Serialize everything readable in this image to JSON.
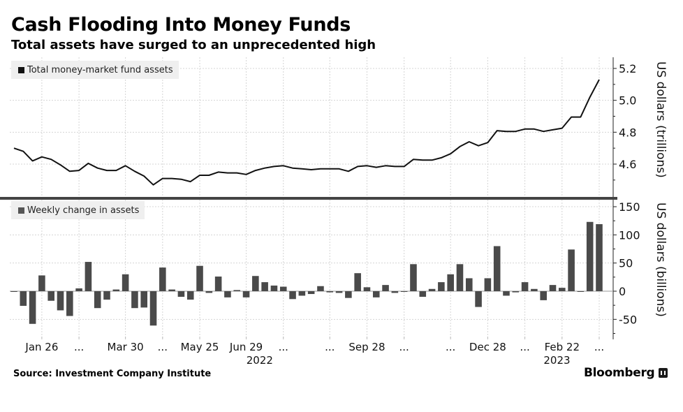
{
  "header": {
    "title": "Cash Flooding Into Money Funds",
    "subtitle": "Total assets have surged to an unprecedented high"
  },
  "footer": {
    "source": "Source: Investment Company Institute",
    "brand": "Bloomberg"
  },
  "colors": {
    "line": "#111111",
    "bar": "#4a4a4a",
    "grid": "#d4d4d4",
    "divider": "#444444",
    "legend_bg": "#efefef"
  },
  "chart_data": [
    {
      "type": "line",
      "title": "Total money-market fund assets",
      "legend": [
        "Total money-market fund assets"
      ],
      "legend_placement": "top-left",
      "ylabel": "US dollars (trillions)",
      "ylim": [
        4.4,
        5.25
      ],
      "yticks": [
        "5.2",
        "5.0",
        "4.8",
        "4.6"
      ],
      "ytick_values": [
        5.2,
        5.0,
        4.8,
        4.6
      ],
      "grid": true,
      "series": [
        {
          "name": "Total money-market fund assets",
          "values": [
            4.7,
            4.68,
            4.62,
            4.645,
            4.63,
            4.595,
            4.555,
            4.56,
            4.605,
            4.575,
            4.56,
            4.56,
            4.59,
            4.555,
            4.525,
            4.47,
            4.51,
            4.51,
            4.505,
            4.49,
            4.53,
            4.53,
            4.55,
            4.545,
            4.545,
            4.535,
            4.56,
            4.575,
            4.585,
            4.59,
            4.575,
            4.57,
            4.565,
            4.57,
            4.57,
            4.57,
            4.555,
            4.585,
            4.59,
            4.58,
            4.59,
            4.585,
            4.585,
            4.63,
            4.625,
            4.625,
            4.64,
            4.665,
            4.71,
            4.74,
            4.715,
            4.735,
            4.81,
            4.805,
            4.805,
            4.82,
            4.82,
            4.805,
            4.815,
            4.825,
            4.895,
            4.895,
            5.02,
            5.13
          ]
        }
      ]
    },
    {
      "type": "bar",
      "title": "Weekly change in assets",
      "legend": [
        "Weekly change in assets"
      ],
      "legend_placement": "top-left",
      "ylabel": "US dollars (billions)",
      "ylim": [
        -80,
        160
      ],
      "yticks": [
        "150",
        "100",
        "50",
        "0",
        "-50"
      ],
      "ytick_values": [
        150,
        100,
        50,
        0,
        -50
      ],
      "grid": true,
      "x_ticks": [
        {
          "label": "Jan 26",
          "index": 3
        },
        {
          "label": "...",
          "index": 7
        },
        {
          "label": "Mar 30",
          "index": 12
        },
        {
          "label": "...",
          "index": 16
        },
        {
          "label": "May 25",
          "index": 20
        },
        {
          "label": "Jun 29",
          "index": 25
        },
        {
          "label": "...",
          "index": 29
        },
        {
          "label": "...",
          "index": 34
        },
        {
          "label": "Sep 28",
          "index": 38
        },
        {
          "label": "...",
          "index": 42
        },
        {
          "label": "...",
          "index": 47
        },
        {
          "label": "Dec 28",
          "index": 51
        },
        {
          "label": "...",
          "index": 55
        },
        {
          "label": "Feb 22",
          "index": 59
        },
        {
          "label": "...",
          "index": 63
        }
      ],
      "x_year_labels": [
        {
          "label": "2022",
          "index": 26
        },
        {
          "label": "2023",
          "index": 58
        }
      ],
      "series": [
        {
          "name": "Weekly change in assets",
          "values": [
            -1,
            -26,
            -58,
            28,
            -17,
            -34,
            -44,
            5,
            52,
            -30,
            -15,
            3,
            30,
            -30,
            -29,
            -61,
            42,
            3,
            -10,
            -15,
            45,
            -3,
            26,
            -11,
            2,
            -11,
            27,
            16,
            10,
            8,
            -14,
            -8,
            -5,
            9,
            -2,
            -3,
            -12,
            32,
            7,
            -11,
            11,
            -3,
            -1,
            48,
            -10,
            4,
            16,
            30,
            48,
            23,
            -28,
            23,
            80,
            -8,
            -2,
            16,
            4,
            -16,
            11,
            6,
            74,
            0,
            123,
            119
          ]
        }
      ]
    }
  ],
  "axes_text": {
    "top_ylabel": "US dollars (trillions)",
    "bottom_ylabel": "US dollars (billions)"
  }
}
